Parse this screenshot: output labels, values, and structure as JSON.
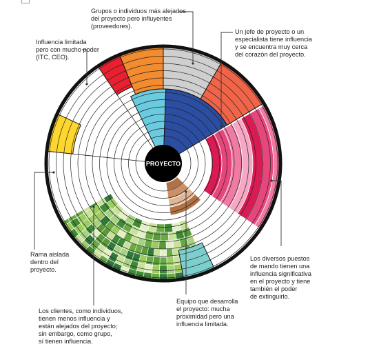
{
  "center_label": "PROYECTO",
  "annotations": {
    "grupos": "Grupos o individuos más alejados\ndel proyecto pero influyentes\n(proveedores).",
    "jefe": "Un jefe de proyecto o un\nespecialista tiene influencia\ny se encuentra muy cerca\ndel corazón del proyecto.",
    "influencia_limitada": "Influencia limitada\npero con mucho poder\n(ITC, CEO).",
    "rama_aislada": "Rama aislada\ndentro del\nproyecto.",
    "puestos_mando": "Los diversos puestos\nde mando tienen una\ninfluencia significativa\nen el proyecto y tiene\ntambién el poder\nde extinguirlo.",
    "equipo": "Equipo que desarrolla\nel proyecto: mucha\nproximidad pero una\ninfluencia limitada.",
    "clientes": "Los clientes, como individuos,\ntienen menos influencia y\nestán alejados del proyecto;\nsin embargo, como grupo,\nsí tienen influencia."
  },
  "colors": {
    "outline": "#111111",
    "red": "#e8202f",
    "orange": "#f38b2f",
    "gray": "#cfcfcf",
    "salmon": "#f0654a",
    "cyan": "#6acbe0",
    "navy": "#2b4ea3",
    "yellow": "#fdd62e",
    "teal": "#7dcfcf",
    "pinks": [
      "#d81b53",
      "#e6467c",
      "#f07aa4",
      "#f6a7c4"
    ],
    "browns": [
      "#b27045",
      "#cc9068",
      "#e0b794"
    ],
    "greens": [
      "#3f8b35",
      "#6aaa45",
      "#9ccc5d",
      "#c9e29a",
      "#e4f0c6",
      "#5b9a3a",
      "#2f7a3a",
      "#a8d283"
    ]
  }
}
